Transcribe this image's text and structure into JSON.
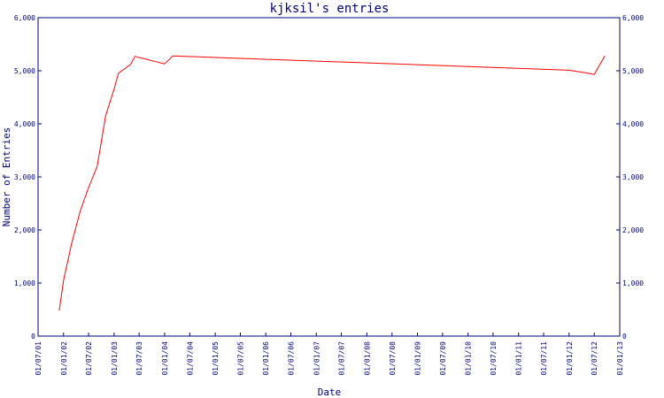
{
  "chart_data": {
    "type": "line",
    "title": "kjksil's entries",
    "xlabel": "Date",
    "ylabel": "Number of Entries",
    "ylim": [
      0,
      6000
    ],
    "y_ticks": [
      0,
      1000,
      2000,
      3000,
      4000,
      5000,
      6000
    ],
    "y_tick_labels": [
      "0",
      "1,000",
      "2,000",
      "3,000",
      "4,000",
      "5,000",
      "6,000"
    ],
    "x_range": [
      "2001-07-01",
      "2013-01-01"
    ],
    "x_ticks": [
      "2001-07-01",
      "2002-01-01",
      "2002-07-01",
      "2003-01-01",
      "2003-07-01",
      "2004-01-01",
      "2004-07-01",
      "2005-01-01",
      "2005-07-01",
      "2006-01-01",
      "2006-07-01",
      "2007-01-01",
      "2007-07-01",
      "2008-01-01",
      "2008-07-01",
      "2009-01-01",
      "2009-07-01",
      "2010-01-01",
      "2010-07-01",
      "2011-01-01",
      "2011-07-01",
      "2012-01-01",
      "2012-07-01",
      "2013-01-01"
    ],
    "x_tick_labels": [
      "01/07/01",
      "01/01/02",
      "01/07/02",
      "01/01/03",
      "01/07/03",
      "01/01/04",
      "01/07/04",
      "01/01/05",
      "01/07/05",
      "01/01/06",
      "01/07/06",
      "01/01/07",
      "01/07/07",
      "01/01/08",
      "01/07/08",
      "01/01/09",
      "01/07/09",
      "01/01/10",
      "01/07/10",
      "01/01/11",
      "01/07/11",
      "01/01/12",
      "01/07/12",
      "01/01/13"
    ],
    "series": [
      {
        "color": "#ff0000",
        "points": [
          [
            "2001-12-01",
            480
          ],
          [
            "2002-01-01",
            1050
          ],
          [
            "2002-03-01",
            1750
          ],
          [
            "2002-05-01",
            2350
          ],
          [
            "2002-07-01",
            2800
          ],
          [
            "2002-09-01",
            3200
          ],
          [
            "2002-11-01",
            4150
          ],
          [
            "2003-01-01",
            4650
          ],
          [
            "2003-02-01",
            4950
          ],
          [
            "2003-05-01",
            5120
          ],
          [
            "2003-06-01",
            5270
          ],
          [
            "2004-01-01",
            5130
          ],
          [
            "2004-03-01",
            5280
          ],
          [
            "2012-01-01",
            5010
          ],
          [
            "2012-05-01",
            4960
          ],
          [
            "2012-07-01",
            4930
          ],
          [
            "2012-09-15",
            5280
          ]
        ]
      }
    ],
    "grid": false,
    "legend": "none",
    "axis_color": "#000080",
    "right_axis_mirrors_left": true
  }
}
